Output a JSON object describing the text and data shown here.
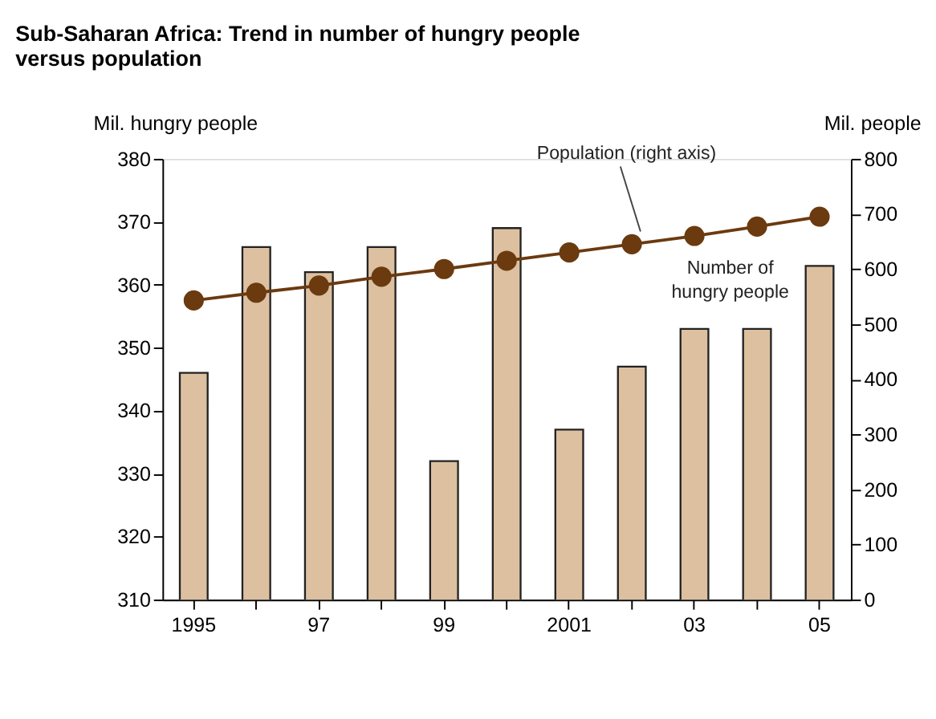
{
  "chart_data": {
    "type": "bar",
    "title": "Sub-Saharan Africa: Trend in number of hungry people versus population",
    "ylabel": "Mil. hungry people",
    "y2label": "Mil. people",
    "categories": [
      "1995",
      null,
      "97",
      null,
      "99",
      null,
      "2001",
      null,
      "03",
      null,
      "05"
    ],
    "series": [
      {
        "name": "Number of hungry people",
        "color": "#dcc0a0",
        "values": [
          346,
          366,
          362,
          366,
          332,
          369,
          337,
          347,
          353,
          353,
          363
        ]
      },
      {
        "name": "Population (right axis)",
        "type": "line",
        "axis": "y2",
        "color": "#6b3a0f",
        "values": [
          543,
          557,
          570,
          586,
          600,
          615,
          630,
          645,
          660,
          677,
          695
        ]
      }
    ],
    "ylim": [
      310,
      380
    ],
    "yticks": [
      310,
      320,
      330,
      340,
      350,
      360,
      370,
      380
    ],
    "y2lim": [
      0,
      800
    ],
    "y2ticks": [
      0,
      100,
      200,
      300,
      400,
      500,
      600,
      700,
      800
    ],
    "marker": "circle",
    "grid": false
  }
}
